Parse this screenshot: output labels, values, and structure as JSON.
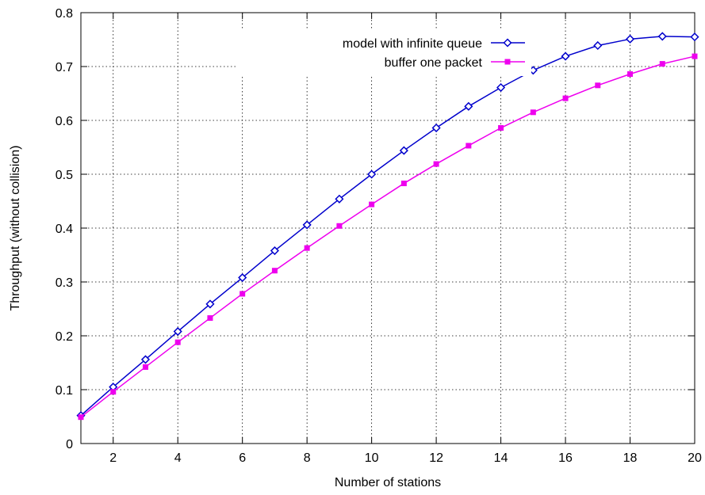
{
  "chart_data": {
    "type": "line",
    "xlabel": "Number of stations",
    "ylabel": "Throughput (without collision)",
    "xlim": [
      1,
      20
    ],
    "ylim": [
      0,
      0.8
    ],
    "xticks": [
      2,
      4,
      6,
      8,
      10,
      12,
      14,
      16,
      18,
      20
    ],
    "xtick_labels": [
      "2",
      "4",
      "6",
      "8",
      "10",
      "12",
      "14",
      "16",
      "18",
      "20"
    ],
    "yticks": [
      0,
      0.1,
      0.2,
      0.3,
      0.4,
      0.5,
      0.6,
      0.7,
      0.8
    ],
    "ytick_labels": [
      "0",
      "0.1",
      "0.2",
      "0.3",
      "0.4",
      "0.5",
      "0.6",
      "0.7",
      "0.8"
    ],
    "grid": true,
    "legend_position": "top-right",
    "x": [
      1,
      2,
      3,
      4,
      5,
      6,
      7,
      8,
      9,
      10,
      11,
      12,
      13,
      14,
      15,
      16,
      17,
      18,
      19,
      20
    ],
    "series": [
      {
        "name": "model with infinite queue",
        "color": "#0000cc",
        "marker": "diamond-open",
        "values": [
          0.052,
          0.105,
          0.156,
          0.208,
          0.259,
          0.308,
          0.358,
          0.406,
          0.454,
          0.5,
          0.544,
          0.586,
          0.626,
          0.661,
          0.693,
          0.719,
          0.739,
          0.751,
          0.756,
          0.755
        ]
      },
      {
        "name": "buffer one packet",
        "color": "#ee00ee",
        "marker": "square-filled",
        "values": [
          0.049,
          0.096,
          0.142,
          0.188,
          0.233,
          0.278,
          0.321,
          0.363,
          0.404,
          0.444,
          0.483,
          0.519,
          0.553,
          0.586,
          0.615,
          0.641,
          0.665,
          0.686,
          0.705,
          0.719
        ]
      }
    ]
  }
}
